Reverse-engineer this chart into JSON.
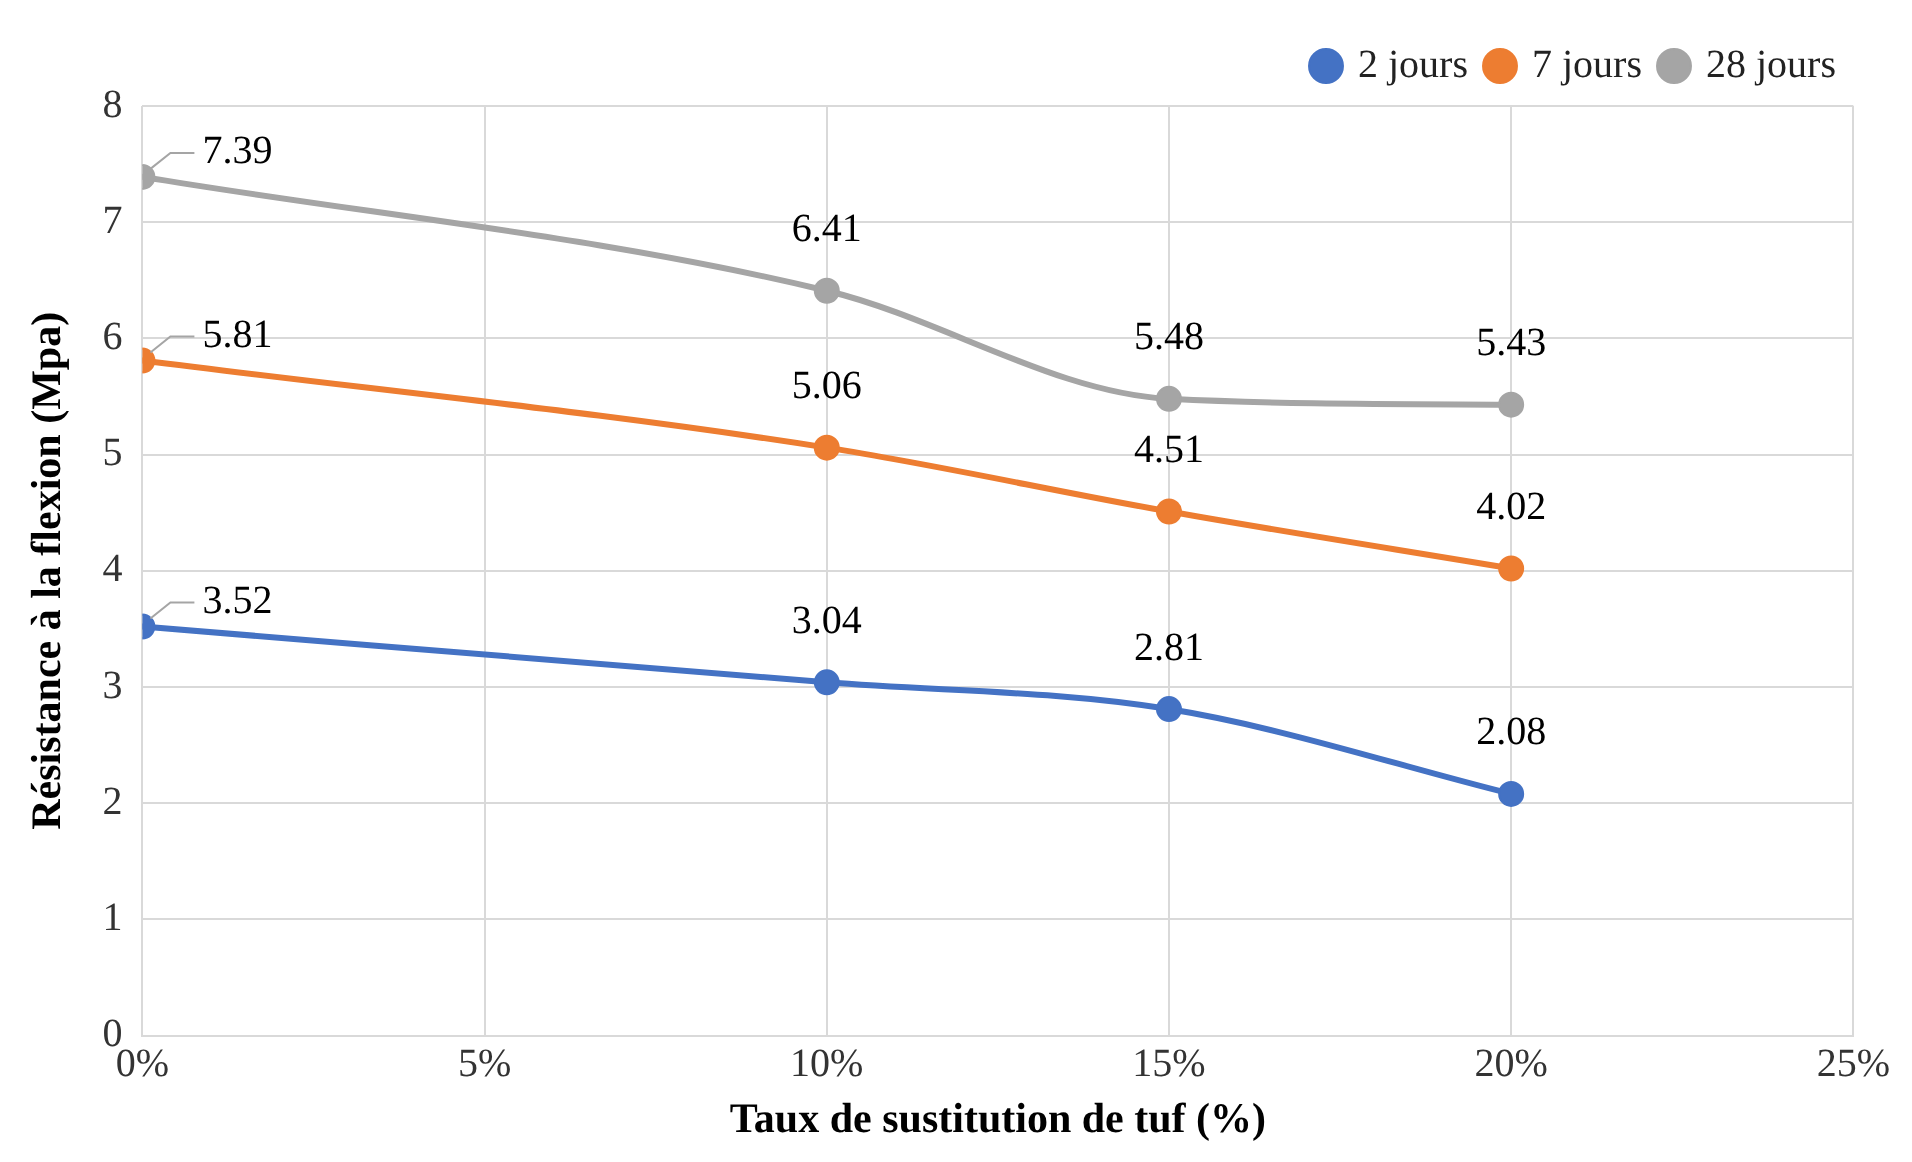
{
  "chart_data": {
    "type": "line",
    "xlabel": "Taux de sustitution de tuf (%)",
    "ylabel": "Résistance à la flexion (Mpa)",
    "x": [
      0,
      10,
      15,
      20
    ],
    "series": [
      {
        "name": "2 jours",
        "color": "#4472c4",
        "values": [
          3.52,
          3.04,
          2.81,
          2.08
        ]
      },
      {
        "name": "7 jours",
        "color": "#ed7d31",
        "values": [
          5.81,
          5.06,
          4.51,
          4.02
        ]
      },
      {
        "name": "28 jours",
        "color": "#a5a5a5",
        "values": [
          7.39,
          6.41,
          5.48,
          5.43
        ]
      }
    ],
    "xlim": [
      0,
      25
    ],
    "xticks": [
      {
        "value": 0,
        "label": "0%"
      },
      {
        "value": 5,
        "label": "5%"
      },
      {
        "value": 10,
        "label": "10%"
      },
      {
        "value": 15,
        "label": "15%"
      },
      {
        "value": 20,
        "label": "20%"
      },
      {
        "value": 25,
        "label": "25%"
      }
    ],
    "ylim": [
      0,
      8
    ],
    "yticks": [
      0,
      1,
      2,
      3,
      4,
      5,
      6,
      7,
      8
    ],
    "grid": true,
    "legend": "top right",
    "marker": "circle",
    "line_style": "solid",
    "data_labels": true
  }
}
